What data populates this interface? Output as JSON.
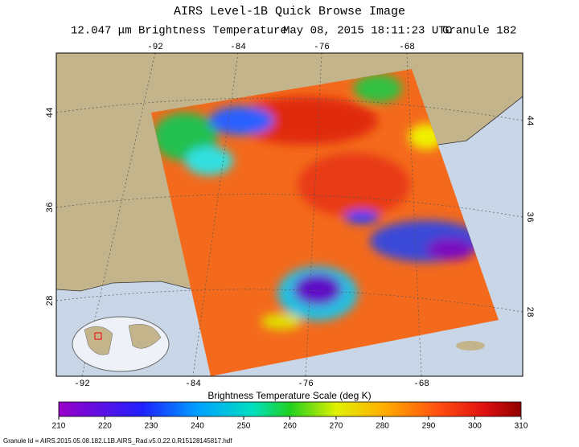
{
  "title": "AIRS Level-1B Quick Browse Image",
  "channel": "12.047 μm Brightness Temperature",
  "date": "May 08, 2015 18:11:23 UTC",
  "granule": "Granule 182",
  "map": {
    "lon_ticks": [
      -92,
      -84,
      -76,
      -68
    ],
    "lat_ticks": [
      44,
      36,
      28
    ]
  },
  "colorbar": {
    "label": "Brightness Temperature Scale (deg K)",
    "range": [
      210,
      310
    ],
    "ticks": [
      210,
      220,
      230,
      240,
      250,
      260,
      270,
      280,
      290,
      300,
      310
    ]
  },
  "granule_id": "Granule Id = AIRS.2015.05.08.182.L1B.AIRS_Rad.v5.0.22.0.R15128145817.hdf"
}
